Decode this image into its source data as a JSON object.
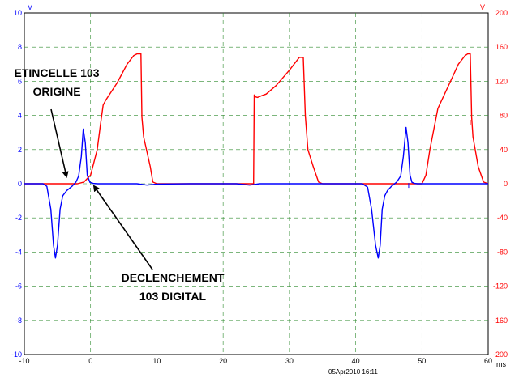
{
  "chart_data": {
    "type": "line",
    "title": "",
    "x_unit": "ms",
    "x_range": [
      -10,
      60
    ],
    "x_ticks": [
      "-10",
      "0",
      "10",
      "20",
      "30",
      "40",
      "50",
      "60"
    ],
    "left_axis": {
      "unit": "V",
      "range": [
        -10,
        10
      ],
      "ticks": [
        "10",
        "8",
        "6",
        "4",
        "2",
        "0",
        "-2",
        "-4",
        "-6",
        "-8",
        "-10"
      ],
      "color": "#0000ff"
    },
    "right_axis": {
      "unit": "V",
      "range": [
        -200,
        200
      ],
      "ticks": [
        "200",
        "160",
        "120",
        "80",
        "40",
        "0",
        "-40",
        "-80",
        "-120",
        "-160",
        "-200"
      ],
      "color": "#ff0000"
    },
    "grid": "dashed",
    "series": [
      {
        "axis": "left",
        "color": "#0000ff",
        "x": [
          -10,
          -7.2,
          -6.6,
          -6.0,
          -5.6,
          -5.3,
          -5.0,
          -4.6,
          -4.2,
          -3.6,
          -2.8,
          -2.2,
          -1.8,
          -1.4,
          -1.1,
          -0.8,
          -0.5,
          -0.1,
          0.4,
          1.0,
          3.0,
          7.0,
          8.5,
          10.0,
          15.0,
          20.0,
          22.0,
          24.0,
          24.6,
          25.5,
          30.0,
          35.0,
          38.0,
          41.0,
          41.8,
          42.4,
          43.0,
          43.4,
          43.7,
          44.0,
          44.4,
          44.8,
          45.4,
          46.2,
          46.8,
          47.2,
          47.6,
          47.9,
          48.2,
          48.5,
          48.9,
          49.3,
          50.0,
          53.0,
          56.0,
          60.0
        ],
        "y": [
          0,
          0,
          -0.15,
          -1.5,
          -3.6,
          -4.35,
          -3.6,
          -1.5,
          -0.7,
          -0.4,
          -0.15,
          0.1,
          0.45,
          1.6,
          3.2,
          2.4,
          0.5,
          0.08,
          0.02,
          0,
          0,
          0,
          -0.08,
          -0.02,
          0,
          0,
          0,
          -0.08,
          -0.05,
          0,
          0,
          0,
          0,
          0,
          -0.2,
          -1.5,
          -3.6,
          -4.35,
          -3.6,
          -1.5,
          -0.7,
          -0.4,
          -0.15,
          0.1,
          0.45,
          1.6,
          3.3,
          2.4,
          0.5,
          0.08,
          0.02,
          0,
          0,
          0,
          0,
          0
        ]
      },
      {
        "axis": "right",
        "color": "#ff0000",
        "x": [
          -10,
          -4.0,
          -2.0,
          -1.0,
          0.0,
          1.0,
          1.5,
          1.9,
          2.3,
          4.0,
          5.5,
          6.5,
          7.0,
          7.3,
          7.6,
          7.75,
          8.0,
          9.0,
          9.4,
          10.0,
          20.0,
          24.6,
          24.7,
          24.8,
          25.2,
          25.8,
          26.5,
          28.0,
          30.0,
          31.5,
          32.1,
          32.4,
          32.6,
          32.8,
          33.6,
          34.4,
          35.0,
          40.0,
          50.0,
          50.6,
          51.2,
          52.4,
          53.0,
          54.2,
          55.5,
          56.5,
          56.9,
          57.3,
          57.5,
          57.7,
          58.5,
          59.3,
          60.0
        ],
        "y": [
          0,
          0,
          0,
          2,
          10,
          40,
          70,
          92,
          98,
          118,
          140,
          150,
          152,
          152,
          152,
          78,
          55,
          20,
          2,
          0,
          0,
          0,
          104,
          102,
          101,
          103,
          105,
          115,
          133,
          148,
          148,
          80,
          60,
          40,
          20,
          2,
          0,
          0,
          0,
          10,
          40,
          88,
          98,
          118,
          140,
          150,
          152,
          152,
          78,
          55,
          20,
          2,
          0
        ]
      }
    ],
    "markers": [
      {
        "x": 48.0,
        "axis": "left",
        "y": -0.1
      },
      {
        "x": 57.3,
        "axis": "right",
        "y": 72
      }
    ],
    "annotations": [
      {
        "lines": [
          "ETINCELLE 103",
          "ORIGINE"
        ],
        "points_to": {
          "x": -3.0,
          "y": 0.0
        }
      },
      {
        "lines": [
          "DECLENCHEMENT",
          "103 DIGITAL"
        ],
        "points_to": {
          "x": 0.5,
          "y": 0.0
        }
      }
    ],
    "timestamp": "05Apr2010  16:11"
  }
}
